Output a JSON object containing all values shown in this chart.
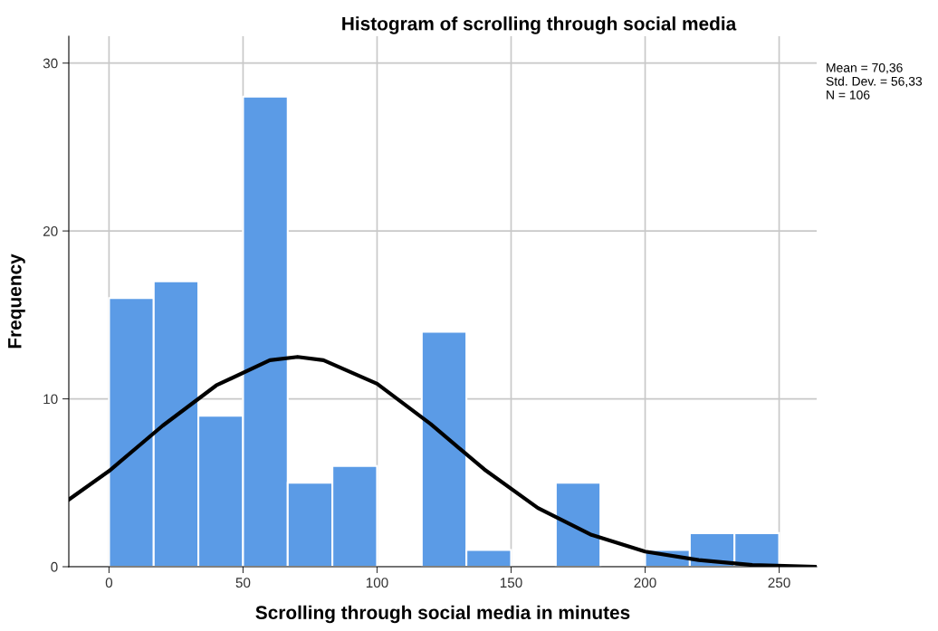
{
  "chart_data": {
    "type": "histogram",
    "title": "Histogram of scrolling through social media",
    "xlabel": "Scrolling through social media in minutes",
    "ylabel": "Frequency",
    "bins": [
      0,
      16.67,
      33.33,
      50,
      66.67,
      83.33,
      100,
      116.67,
      133.33,
      150,
      166.67,
      183.33,
      200,
      216.67,
      233.33,
      250
    ],
    "values": [
      16,
      17,
      9,
      28,
      5,
      6,
      0,
      14,
      1,
      0,
      5,
      0,
      1,
      2,
      2
    ],
    "color": "#5b9be6",
    "series": [
      {
        "type": "line",
        "color": "#000000",
        "x": [
          -15,
          0,
          20,
          40,
          60,
          70.36,
          80,
          100,
          120,
          140,
          160,
          180,
          200,
          220,
          240,
          264
        ],
        "values": [
          4.0,
          5.7,
          8.4,
          10.8,
          12.3,
          12.5,
          12.3,
          10.9,
          8.5,
          5.8,
          3.5,
          1.9,
          0.9,
          0.4,
          0.1,
          0.0
        ]
      }
    ],
    "xlim": [
      -15,
      264
    ],
    "ylim": [
      0,
      31.6
    ],
    "xticks": [
      0,
      50,
      100,
      150,
      200,
      250
    ],
    "yticks": [
      0,
      10,
      20,
      30
    ],
    "grid": true,
    "annotations": [
      "Mean = 70,36",
      "Std. Dev. = 56,33",
      "N = 106"
    ]
  }
}
